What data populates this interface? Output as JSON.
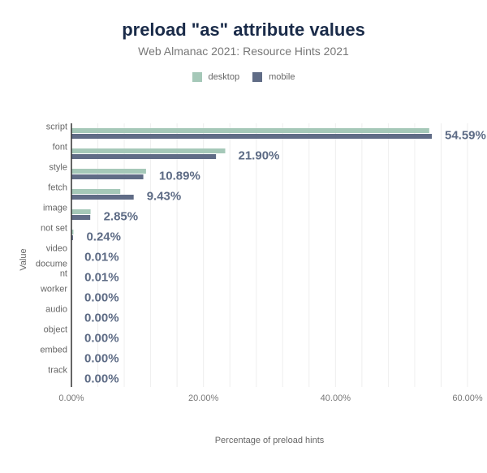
{
  "title": "preload \"as\" attribute values",
  "subtitle": "Web Almanac 2021: Resource Hints 2021",
  "colors": {
    "desktop": "#a5c8b8",
    "mobile": "#606c86",
    "label": "#5d6b85",
    "axis": "#333333",
    "grid": "#eeeeee"
  },
  "chart_data": {
    "type": "bar",
    "orientation": "horizontal",
    "title": "preload \"as\" attribute values",
    "subtitle": "Web Almanac 2021: Resource Hints 2021",
    "xlabel": "Percentage of preload hints",
    "ylabel": "Value",
    "xlim": [
      0,
      60
    ],
    "x_ticks": [
      0,
      20,
      40,
      60
    ],
    "x_tick_labels": [
      "0.00%",
      "20.00%",
      "40.00%",
      "60.00%"
    ],
    "grid": "vertical",
    "legend_position": "top",
    "categories": [
      "script",
      "font",
      "style",
      "fetch",
      "image",
      "not set",
      "video",
      "document",
      "worker",
      "audio",
      "object",
      "embed",
      "track"
    ],
    "category_label_lines": [
      [
        "script"
      ],
      [
        "font"
      ],
      [
        "style"
      ],
      [
        "fetch"
      ],
      [
        "image"
      ],
      [
        "not set"
      ],
      [
        "video"
      ],
      [
        "docume",
        "nt"
      ],
      [
        "worker"
      ],
      [
        "audio"
      ],
      [
        "object"
      ],
      [
        "embed"
      ],
      [
        "track"
      ]
    ],
    "series": [
      {
        "name": "desktop",
        "values": [
          54.2,
          23.3,
          11.3,
          7.4,
          2.9,
          0.3,
          0.01,
          0.01,
          0,
          0,
          0,
          0,
          0
        ]
      },
      {
        "name": "mobile",
        "values": [
          54.59,
          21.9,
          10.89,
          9.43,
          2.85,
          0.24,
          0.01,
          0.01,
          0,
          0,
          0,
          0,
          0
        ]
      }
    ],
    "data_labels": [
      "54.59%",
      "21.90%",
      "10.89%",
      "9.43%",
      "2.85%",
      "0.24%",
      "0.01%",
      "0.01%",
      "0.00%",
      "0.00%",
      "0.00%",
      "0.00%",
      "0.00%"
    ]
  }
}
